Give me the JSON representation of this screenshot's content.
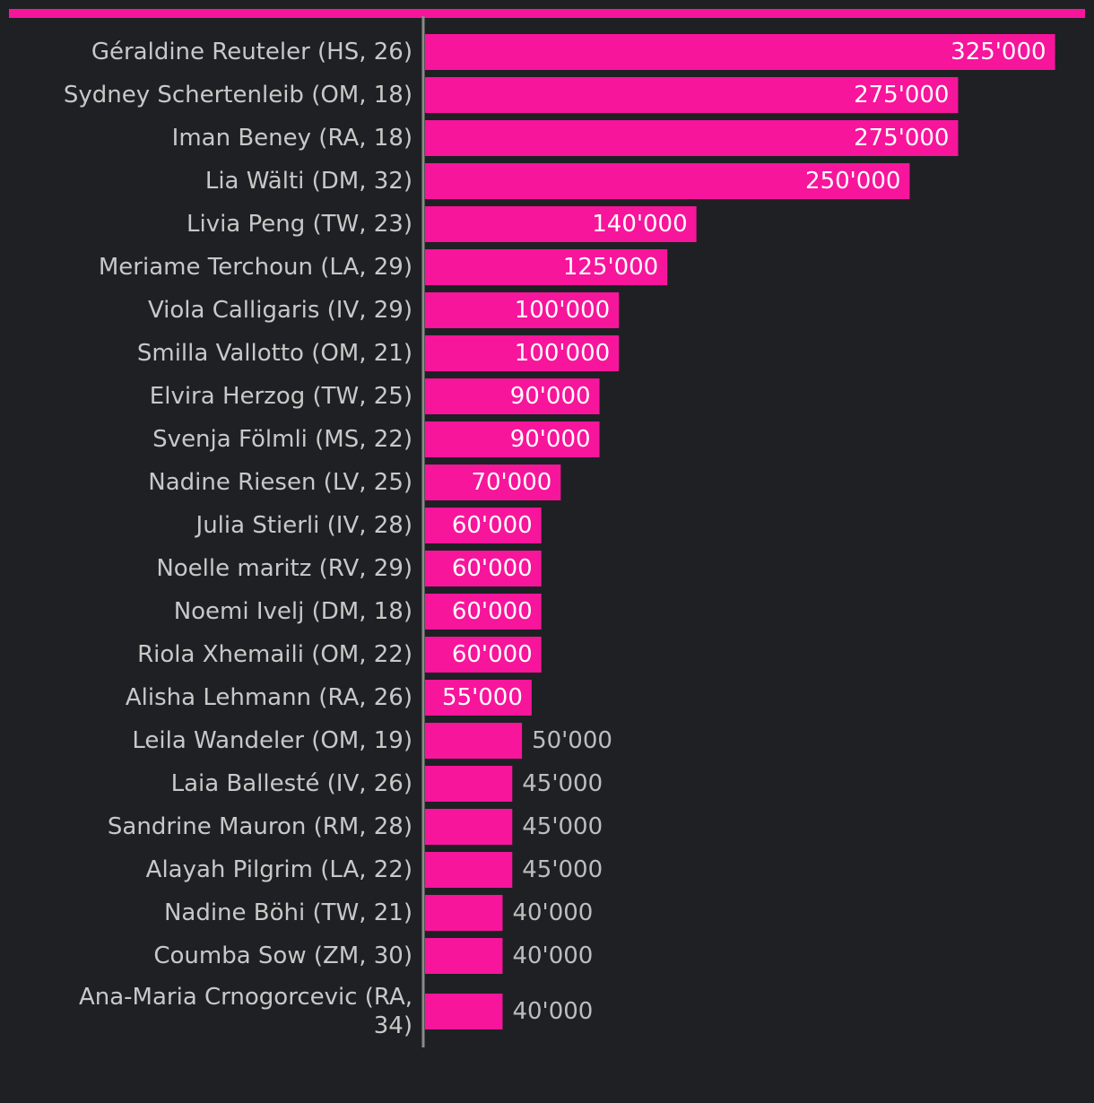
{
  "colors": {
    "background": "#1f2023",
    "bar": "#f7159c",
    "accent_rule": "#f7159c",
    "axis": "#8a8a8a",
    "label_text": "#c8c8c8",
    "inside_value_text": "#ffffff",
    "outside_value_text": "#bdbdbd"
  },
  "chart_data": {
    "type": "bar",
    "orientation": "horizontal",
    "title": "",
    "xlabel": "",
    "ylabel": "",
    "grid": false,
    "legend": "none",
    "xlim": [
      0,
      340000
    ],
    "categories": [
      "Géraldine Reuteler (HS, 26)",
      "Sydney Schertenleib (OM, 18)",
      "Iman Beney (RA, 18)",
      "Lia Wälti (DM, 32)",
      "Livia Peng (TW, 23)",
      "Meriame Terchoun (LA, 29)",
      "Viola Calligaris (IV, 29)",
      "Smilla Vallotto (OM, 21)",
      "Elvira Herzog (TW, 25)",
      "Svenja Fölmli (MS, 22)",
      "Nadine Riesen (LV, 25)",
      "Julia Stierli (IV, 28)",
      "Noelle maritz (RV, 29)",
      "Noemi Ivelj (DM, 18)",
      "Riola Xhemaili (OM, 22)",
      "Alisha Lehmann (RA, 26)",
      "Leila Wandeler (OM, 19)",
      "Laia Ballesté (IV, 26)",
      "Sandrine Mauron (RM, 28)",
      "Alayah Pilgrim (LA, 22)",
      "Nadine Böhi (TW, 21)",
      "Coumba Sow (ZM, 30)",
      "Ana-Maria Crnogorcevic (RA, 34)"
    ],
    "label_lines": [
      [
        "Géraldine Reuteler (HS, 26)"
      ],
      [
        "Sydney Schertenleib (OM, 18)"
      ],
      [
        "Iman Beney (RA, 18)"
      ],
      [
        "Lia Wälti (DM, 32)"
      ],
      [
        "Livia Peng (TW, 23)"
      ],
      [
        "Meriame Terchoun (LA, 29)"
      ],
      [
        "Viola Calligaris (IV, 29)"
      ],
      [
        "Smilla Vallotto (OM, 21)"
      ],
      [
        "Elvira Herzog (TW, 25)"
      ],
      [
        "Svenja Fölmli (MS, 22)"
      ],
      [
        "Nadine Riesen (LV, 25)"
      ],
      [
        "Julia Stierli (IV, 28)"
      ],
      [
        "Noelle maritz (RV, 29)"
      ],
      [
        "Noemi Ivelj (DM, 18)"
      ],
      [
        "Riola Xhemaili (OM, 22)"
      ],
      [
        "Alisha Lehmann (RA, 26)"
      ],
      [
        "Leila Wandeler (OM, 19)"
      ],
      [
        "Laia Ballesté (IV, 26)"
      ],
      [
        "Sandrine Mauron (RM, 28)"
      ],
      [
        "Alayah Pilgrim (LA, 22)"
      ],
      [
        "Nadine Böhi (TW, 21)"
      ],
      [
        "Coumba Sow (ZM, 30)"
      ],
      [
        "Ana-Maria Crnogorcevic (RA,",
        "34)"
      ]
    ],
    "values": [
      325000,
      275000,
      275000,
      250000,
      140000,
      125000,
      100000,
      100000,
      90000,
      90000,
      70000,
      60000,
      60000,
      60000,
      60000,
      55000,
      50000,
      45000,
      45000,
      45000,
      40000,
      40000,
      40000
    ],
    "value_labels": [
      "325'000",
      "275'000",
      "275'000",
      "250'000",
      "140'000",
      "125'000",
      "100'000",
      "100'000",
      "90'000",
      "90'000",
      "70'000",
      "60'000",
      "60'000",
      "60'000",
      "60'000",
      "55'000",
      "50'000",
      "45'000",
      "45'000",
      "45'000",
      "40'000",
      "40'000",
      "40'000"
    ],
    "value_label_inside": [
      true,
      true,
      true,
      true,
      true,
      true,
      true,
      true,
      true,
      true,
      true,
      true,
      true,
      true,
      true,
      true,
      false,
      false,
      false,
      false,
      false,
      false,
      false
    ]
  }
}
